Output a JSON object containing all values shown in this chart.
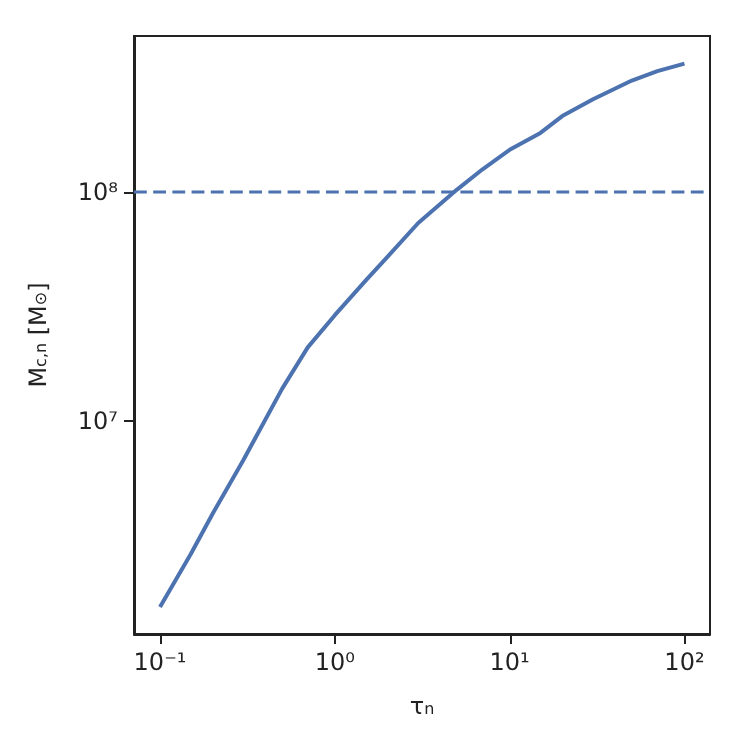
{
  "chart_data": {
    "type": "line",
    "xlabel": "τ$_{n}$",
    "ylabel": "M$_{c,n}$ [M$_{⊙}$]",
    "log": "xy",
    "grid": false,
    "marker": "none",
    "line_style": "solid",
    "x": [
      0.1,
      0.15,
      0.2,
      0.3,
      0.5,
      0.7,
      1,
      1.5,
      2,
      3,
      5,
      7,
      10,
      15,
      20,
      30,
      50,
      70,
      100
    ],
    "series": [
      {
        "color": "#4c72b0",
        "values": [
          1560000.0,
          2650000.0,
          3970000.0,
          6800000.0,
          13900000.0,
          21000000.0,
          29000000.0,
          41000000.0,
          52000000.0,
          73000000.0,
          102000000.0,
          125000000.0,
          152000000.0,
          180000000.0,
          213000000.0,
          252000000.0,
          304000000.0,
          334000000.0,
          360000000.0
        ]
      }
    ],
    "xlim": [
      0.071,
      140
    ],
    "ylim": [
      1190000.0,
      475000000.0
    ],
    "xticks": [
      {
        "value": 0.1,
        "label": "10⁻¹"
      },
      {
        "value": 1,
        "label": "10⁰"
      },
      {
        "value": 10,
        "label": "10¹"
      },
      {
        "value": 100,
        "label": "10²"
      }
    ],
    "yticks": [
      {
        "value": 10000000,
        "label": "10⁷"
      },
      {
        "value": 100000000,
        "label": "10⁸"
      }
    ],
    "ref_lines": [
      {
        "axis": "y",
        "value": 100000000,
        "color": "#4c72b0",
        "line_style": "dashed"
      }
    ]
  }
}
